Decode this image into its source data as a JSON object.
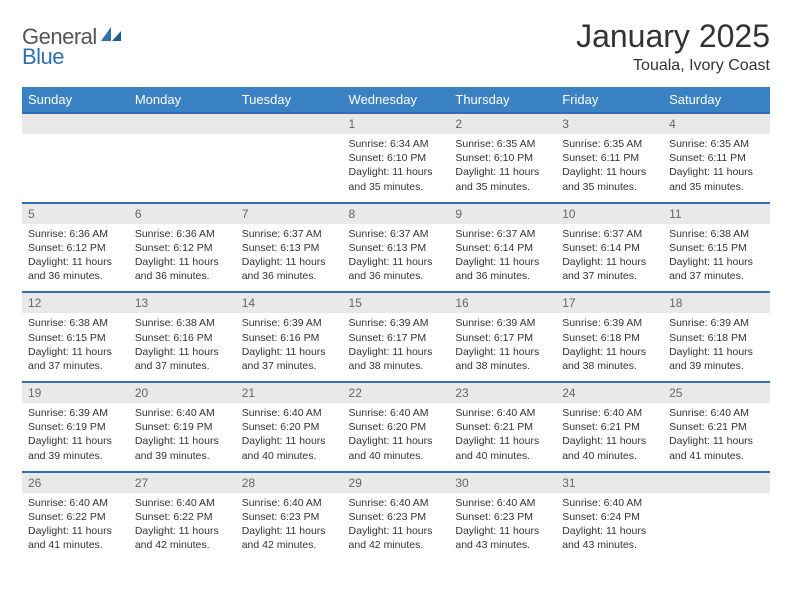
{
  "logo": {
    "text1": "General",
    "text2": "Blue"
  },
  "title": "January 2025",
  "location": "Touala, Ivory Coast",
  "colors": {
    "header_bg": "#3b82c4",
    "header_text": "#ffffff",
    "daynum_bg": "#e9e9e9",
    "daynum_text": "#666666",
    "rule": "#2f6faf",
    "body_text": "#333333",
    "logo_gray": "#555555",
    "logo_blue": "#2f6faf"
  },
  "fonts": {
    "title_size": 32,
    "location_size": 16,
    "dow_size": 13,
    "daynum_size": 12,
    "cell_size": 10.5
  },
  "days_of_week": [
    "Sunday",
    "Monday",
    "Tuesday",
    "Wednesday",
    "Thursday",
    "Friday",
    "Saturday"
  ],
  "weeks": [
    [
      null,
      null,
      null,
      {
        "n": "1",
        "sunrise": "6:34 AM",
        "sunset": "6:10 PM",
        "daylight": "11 hours and 35 minutes."
      },
      {
        "n": "2",
        "sunrise": "6:35 AM",
        "sunset": "6:10 PM",
        "daylight": "11 hours and 35 minutes."
      },
      {
        "n": "3",
        "sunrise": "6:35 AM",
        "sunset": "6:11 PM",
        "daylight": "11 hours and 35 minutes."
      },
      {
        "n": "4",
        "sunrise": "6:35 AM",
        "sunset": "6:11 PM",
        "daylight": "11 hours and 35 minutes."
      }
    ],
    [
      {
        "n": "5",
        "sunrise": "6:36 AM",
        "sunset": "6:12 PM",
        "daylight": "11 hours and 36 minutes."
      },
      {
        "n": "6",
        "sunrise": "6:36 AM",
        "sunset": "6:12 PM",
        "daylight": "11 hours and 36 minutes."
      },
      {
        "n": "7",
        "sunrise": "6:37 AM",
        "sunset": "6:13 PM",
        "daylight": "11 hours and 36 minutes."
      },
      {
        "n": "8",
        "sunrise": "6:37 AM",
        "sunset": "6:13 PM",
        "daylight": "11 hours and 36 minutes."
      },
      {
        "n": "9",
        "sunrise": "6:37 AM",
        "sunset": "6:14 PM",
        "daylight": "11 hours and 36 minutes."
      },
      {
        "n": "10",
        "sunrise": "6:37 AM",
        "sunset": "6:14 PM",
        "daylight": "11 hours and 37 minutes."
      },
      {
        "n": "11",
        "sunrise": "6:38 AM",
        "sunset": "6:15 PM",
        "daylight": "11 hours and 37 minutes."
      }
    ],
    [
      {
        "n": "12",
        "sunrise": "6:38 AM",
        "sunset": "6:15 PM",
        "daylight": "11 hours and 37 minutes."
      },
      {
        "n": "13",
        "sunrise": "6:38 AM",
        "sunset": "6:16 PM",
        "daylight": "11 hours and 37 minutes."
      },
      {
        "n": "14",
        "sunrise": "6:39 AM",
        "sunset": "6:16 PM",
        "daylight": "11 hours and 37 minutes."
      },
      {
        "n": "15",
        "sunrise": "6:39 AM",
        "sunset": "6:17 PM",
        "daylight": "11 hours and 38 minutes."
      },
      {
        "n": "16",
        "sunrise": "6:39 AM",
        "sunset": "6:17 PM",
        "daylight": "11 hours and 38 minutes."
      },
      {
        "n": "17",
        "sunrise": "6:39 AM",
        "sunset": "6:18 PM",
        "daylight": "11 hours and 38 minutes."
      },
      {
        "n": "18",
        "sunrise": "6:39 AM",
        "sunset": "6:18 PM",
        "daylight": "11 hours and 39 minutes."
      }
    ],
    [
      {
        "n": "19",
        "sunrise": "6:39 AM",
        "sunset": "6:19 PM",
        "daylight": "11 hours and 39 minutes."
      },
      {
        "n": "20",
        "sunrise": "6:40 AM",
        "sunset": "6:19 PM",
        "daylight": "11 hours and 39 minutes."
      },
      {
        "n": "21",
        "sunrise": "6:40 AM",
        "sunset": "6:20 PM",
        "daylight": "11 hours and 40 minutes."
      },
      {
        "n": "22",
        "sunrise": "6:40 AM",
        "sunset": "6:20 PM",
        "daylight": "11 hours and 40 minutes."
      },
      {
        "n": "23",
        "sunrise": "6:40 AM",
        "sunset": "6:21 PM",
        "daylight": "11 hours and 40 minutes."
      },
      {
        "n": "24",
        "sunrise": "6:40 AM",
        "sunset": "6:21 PM",
        "daylight": "11 hours and 40 minutes."
      },
      {
        "n": "25",
        "sunrise": "6:40 AM",
        "sunset": "6:21 PM",
        "daylight": "11 hours and 41 minutes."
      }
    ],
    [
      {
        "n": "26",
        "sunrise": "6:40 AM",
        "sunset": "6:22 PM",
        "daylight": "11 hours and 41 minutes."
      },
      {
        "n": "27",
        "sunrise": "6:40 AM",
        "sunset": "6:22 PM",
        "daylight": "11 hours and 42 minutes."
      },
      {
        "n": "28",
        "sunrise": "6:40 AM",
        "sunset": "6:23 PM",
        "daylight": "11 hours and 42 minutes."
      },
      {
        "n": "29",
        "sunrise": "6:40 AM",
        "sunset": "6:23 PM",
        "daylight": "11 hours and 42 minutes."
      },
      {
        "n": "30",
        "sunrise": "6:40 AM",
        "sunset": "6:23 PM",
        "daylight": "11 hours and 43 minutes."
      },
      {
        "n": "31",
        "sunrise": "6:40 AM",
        "sunset": "6:24 PM",
        "daylight": "11 hours and 43 minutes."
      },
      null
    ]
  ],
  "labels": {
    "sunrise": "Sunrise: ",
    "sunset": "Sunset: ",
    "daylight": "Daylight: "
  }
}
